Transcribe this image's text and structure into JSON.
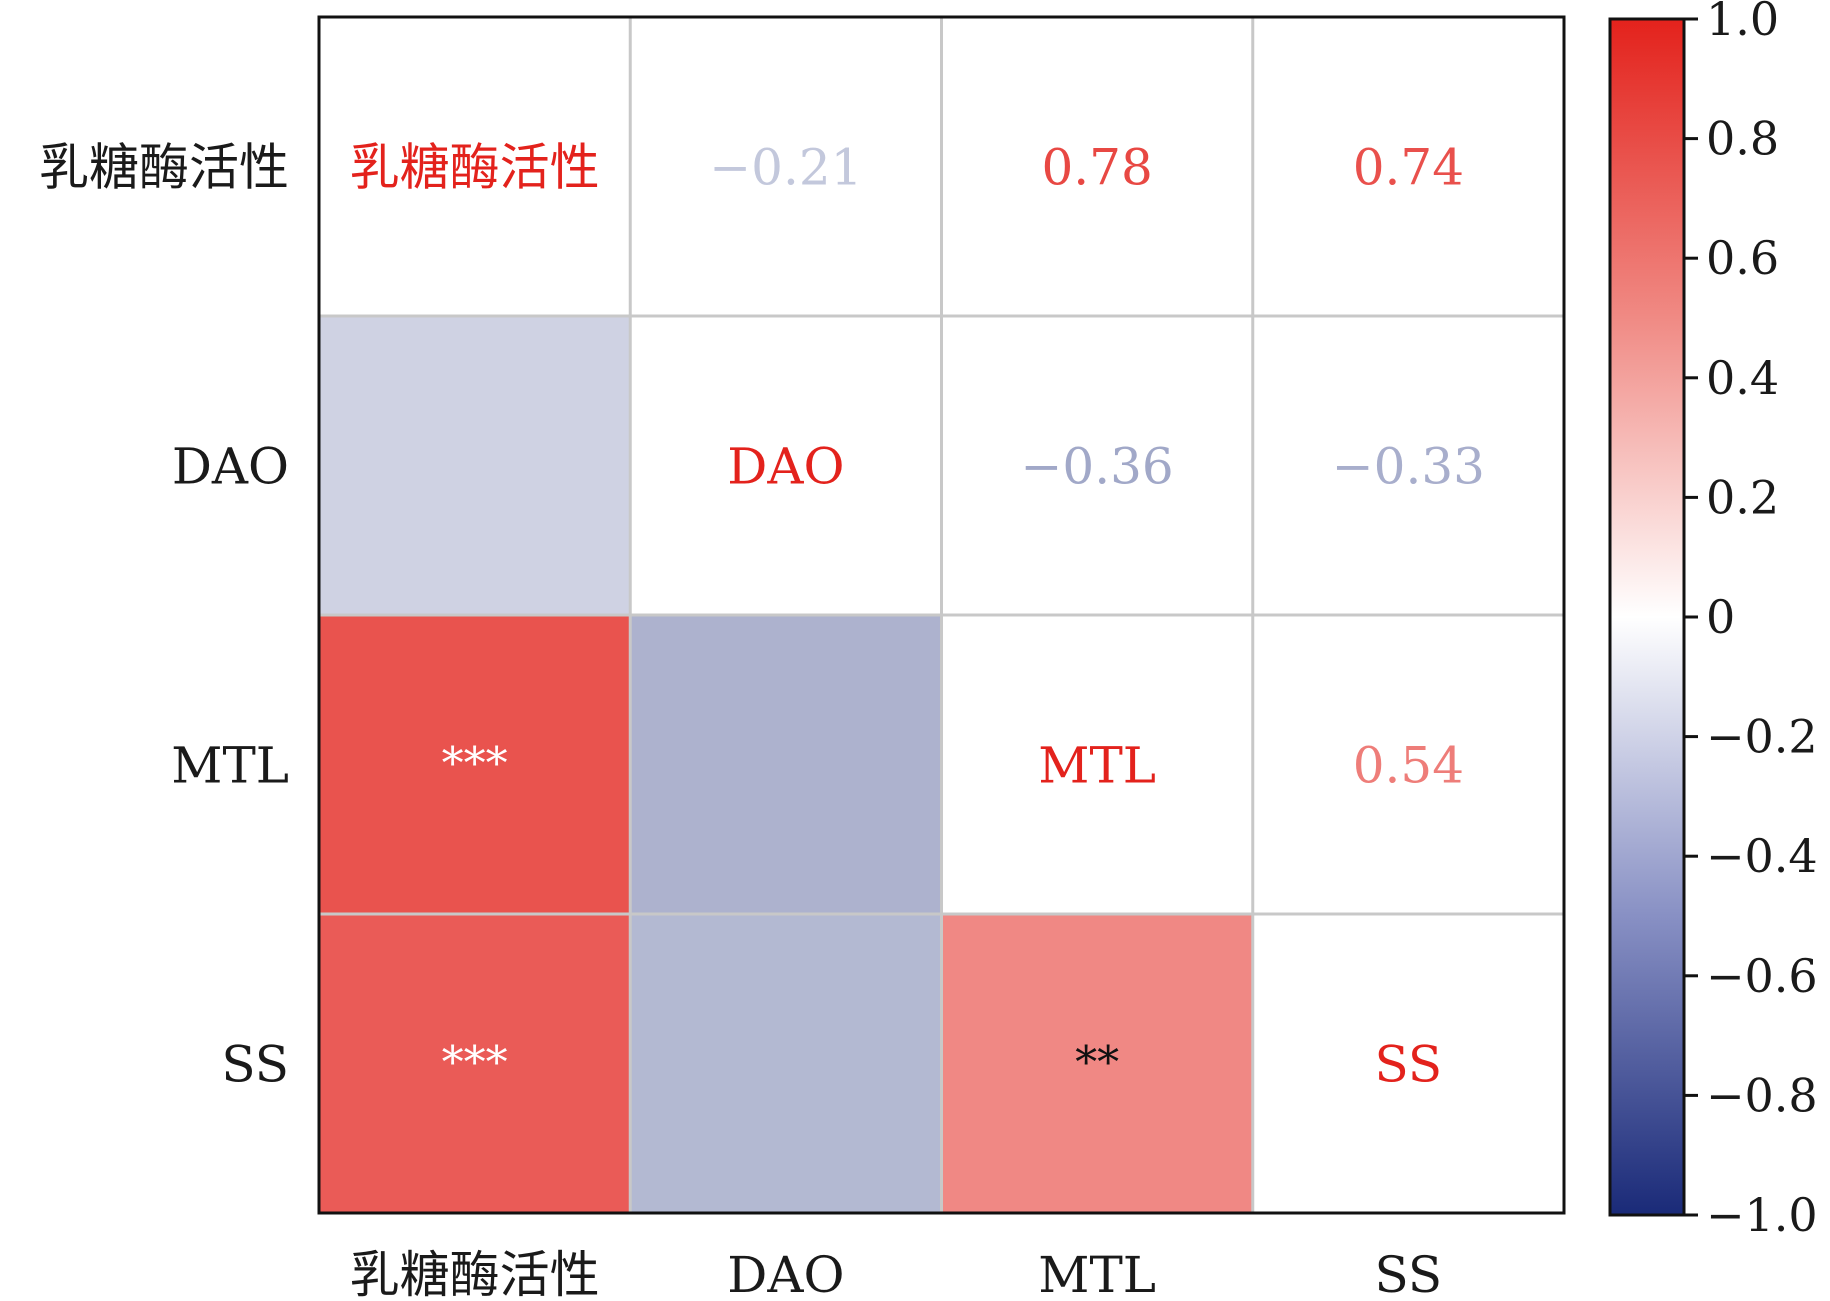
{
  "chart_data": {
    "type": "heatmap",
    "variables": [
      "乳糖酶活性",
      "DAO",
      "MTL",
      "SS"
    ],
    "correlation": [
      [
        1.0,
        -0.21,
        0.78,
        0.74
      ],
      [
        -0.21,
        1.0,
        -0.36,
        -0.33
      ],
      [
        0.78,
        -0.36,
        1.0,
        0.54
      ],
      [
        0.74,
        -0.33,
        0.54,
        1.0
      ]
    ],
    "upper_labels": [
      [
        "",
        "−0.21",
        "0.78",
        "0.74"
      ],
      [
        "",
        "",
        "−0.36",
        "−0.33"
      ],
      [
        "",
        "",
        "",
        "0.54"
      ],
      [
        "",
        "",
        "",
        ""
      ]
    ],
    "significance": [
      [
        "",
        "",
        "",
        ""
      ],
      [
        "",
        "",
        "",
        ""
      ],
      [
        "***",
        "",
        "",
        ""
      ],
      [
        "***",
        "",
        "**",
        ""
      ]
    ],
    "colorbar": {
      "range": [
        -1.0,
        1.0
      ],
      "ticks": [
        1.0,
        0.8,
        0.6,
        0.4,
        0.2,
        0,
        -0.2,
        -0.4,
        -0.6,
        -0.8,
        -1.0
      ],
      "tick_labels": [
        "1.0",
        "0.8",
        "0.6",
        "0.4",
        "0.2",
        "0",
        "−0.2",
        "−0.4",
        "−0.6",
        "−0.8",
        "−1.0"
      ],
      "colors": {
        "low": "#1a2a78",
        "mid": "#ffffff",
        "high": "#e3221c"
      }
    },
    "diagonal_color": "#e3221c",
    "grid_color": "#c8c8c8"
  }
}
